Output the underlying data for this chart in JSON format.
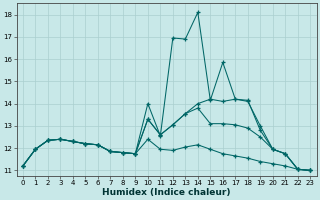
{
  "title": "",
  "xlabel": "Humidex (Indice chaleur)",
  "ylabel": "",
  "bg_color": "#c8e8e8",
  "line_color": "#006666",
  "grid_color": "#aacfcf",
  "xlim": [
    -0.5,
    23.5
  ],
  "ylim": [
    10.75,
    18.5
  ],
  "xticks": [
    0,
    1,
    2,
    3,
    4,
    5,
    6,
    7,
    8,
    9,
    10,
    11,
    12,
    13,
    14,
    15,
    16,
    17,
    18,
    19,
    20,
    21,
    22,
    23
  ],
  "yticks": [
    11,
    12,
    13,
    14,
    15,
    16,
    17,
    18
  ],
  "line1_x": [
    0,
    1,
    2,
    3,
    4,
    5,
    6,
    7,
    8,
    9,
    10,
    11,
    12,
    13,
    14,
    15,
    16,
    17,
    18,
    19,
    20,
    21,
    22,
    23
  ],
  "line1_y": [
    11.2,
    11.95,
    12.35,
    12.4,
    12.3,
    12.2,
    12.15,
    11.85,
    11.8,
    11.75,
    14.0,
    12.55,
    16.95,
    16.9,
    18.1,
    14.15,
    15.85,
    14.2,
    14.15,
    12.8,
    11.95,
    11.75,
    11.05,
    11.0
  ],
  "line2_x": [
    0,
    1,
    2,
    3,
    4,
    5,
    6,
    7,
    8,
    9,
    10,
    11,
    12,
    13,
    14,
    15,
    16,
    17,
    18,
    19,
    20,
    21,
    22,
    23
  ],
  "line2_y": [
    11.2,
    11.95,
    12.35,
    12.4,
    12.3,
    12.2,
    12.15,
    11.85,
    11.8,
    11.75,
    13.3,
    12.6,
    13.05,
    13.55,
    14.0,
    14.2,
    14.1,
    14.2,
    14.1,
    13.0,
    11.95,
    11.75,
    11.05,
    11.0
  ],
  "line3_x": [
    0,
    1,
    2,
    3,
    4,
    5,
    6,
    7,
    8,
    9,
    10,
    11,
    12,
    13,
    14,
    15,
    16,
    17,
    18,
    19,
    20,
    21,
    22,
    23
  ],
  "line3_y": [
    11.2,
    11.95,
    12.35,
    12.4,
    12.3,
    12.2,
    12.15,
    11.85,
    11.8,
    11.75,
    13.3,
    12.6,
    13.05,
    13.55,
    13.8,
    13.1,
    13.1,
    13.05,
    12.9,
    12.5,
    11.95,
    11.75,
    11.05,
    11.0
  ],
  "line4_x": [
    0,
    1,
    2,
    3,
    4,
    5,
    6,
    7,
    8,
    9,
    10,
    11,
    12,
    13,
    14,
    15,
    16,
    17,
    18,
    19,
    20,
    21,
    22,
    23
  ],
  "line4_y": [
    11.2,
    11.95,
    12.35,
    12.4,
    12.3,
    12.2,
    12.15,
    11.85,
    11.8,
    11.75,
    12.4,
    11.95,
    11.9,
    12.05,
    12.15,
    11.95,
    11.75,
    11.65,
    11.55,
    11.4,
    11.3,
    11.2,
    11.05,
    11.0
  ],
  "xlabel_fontsize": 6.5,
  "tick_fontsize": 5.0
}
